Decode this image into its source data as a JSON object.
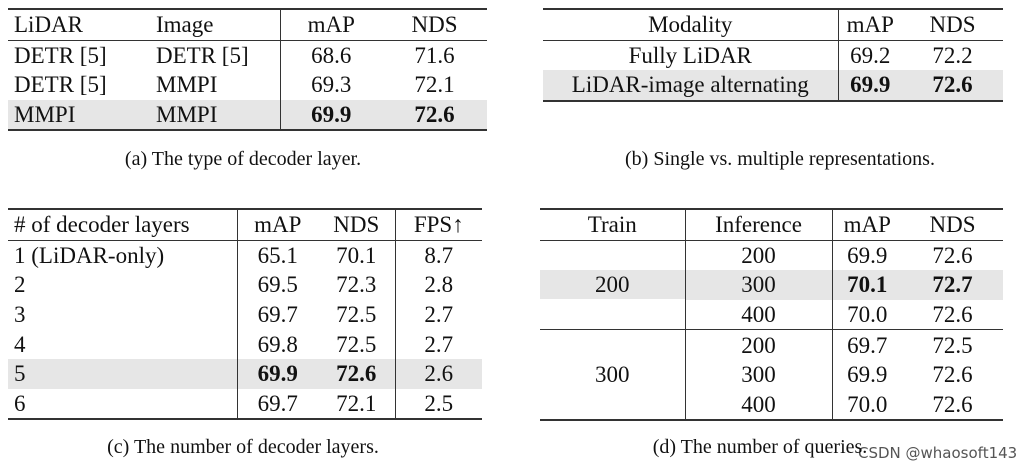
{
  "tables": [
    {
      "id": "a",
      "header": [
        "LiDAR",
        "Image",
        "mAP",
        "NDS"
      ],
      "rows": [
        [
          "DETR [5]",
          "DETR [5]",
          "68.6",
          "71.6"
        ],
        [
          "DETR [5]",
          "MMPI",
          "69.3",
          "72.1"
        ],
        [
          "MMPI",
          "MMPI",
          "69.9",
          "72.6"
        ]
      ],
      "highlight_row": 2,
      "caption": "(a) The type of decoder layer."
    },
    {
      "id": "b",
      "header": [
        "Modality",
        "mAP",
        "NDS"
      ],
      "rows": [
        [
          "Fully LiDAR",
          "69.2",
          "72.2"
        ],
        [
          "LiDAR-image alternating",
          "69.9",
          "72.6"
        ]
      ],
      "highlight_row": 1,
      "caption": "(b) Single vs. multiple representations."
    },
    {
      "id": "c",
      "header": [
        "# of decoder layers",
        "mAP",
        "NDS",
        "FPS↑"
      ],
      "rows": [
        [
          "1 (LiDAR-only)",
          "65.1",
          "70.1",
          "8.7"
        ],
        [
          "2",
          "69.5",
          "72.3",
          "2.8"
        ],
        [
          "3",
          "69.7",
          "72.5",
          "2.7"
        ],
        [
          "4",
          "69.8",
          "72.5",
          "2.7"
        ],
        [
          "5",
          "69.9",
          "72.6",
          "2.6"
        ],
        [
          "6",
          "69.7",
          "72.1",
          "2.5"
        ]
      ],
      "highlight_row": 4,
      "caption": "(c) The number of decoder layers."
    },
    {
      "id": "d",
      "header": [
        "Train",
        "Inference",
        "mAP",
        "NDS"
      ],
      "groups": [
        {
          "train": "200",
          "rows": [
            [
              "200",
              "69.9",
              "72.6"
            ],
            [
              "300",
              "70.1",
              "72.7"
            ],
            [
              "400",
              "70.0",
              "72.6"
            ]
          ],
          "highlight_row": 1
        },
        {
          "train": "300",
          "rows": [
            [
              "200",
              "69.7",
              "72.5"
            ],
            [
              "300",
              "69.9",
              "72.6"
            ],
            [
              "400",
              "70.0",
              "72.6"
            ]
          ]
        }
      ],
      "caption": "(d) The number of queries."
    }
  ],
  "watermark": "CSDN @whaosoft143"
}
